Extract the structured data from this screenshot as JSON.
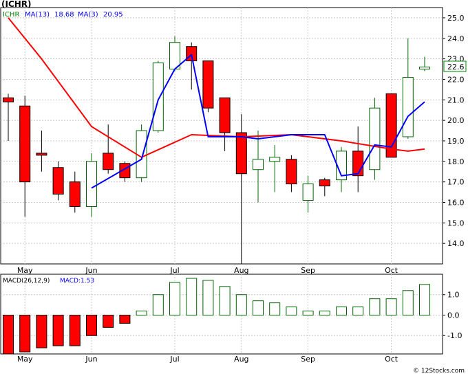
{
  "header": {
    "title": "(ICHR)",
    "legend": [
      {
        "label": "ICHR",
        "color": "#008000"
      },
      {
        "label": "MA(13)",
        "value": "18.68",
        "color": "#0000ff"
      },
      {
        "label": "MA(3)",
        "value": "20.95",
        "color": "#0000ff"
      }
    ]
  },
  "macd_header": {
    "label": "MACD(26,12,9)",
    "value_label": "MACD:1.53",
    "label_color": "#000000",
    "value_color": "#0000ff"
  },
  "watermark": "© 12Stocks.com",
  "colors": {
    "up": "#ffffff",
    "up_border": "#006400",
    "down": "#ff0000",
    "down_border": "#000000",
    "ma_long": "#ff0000",
    "ma_short": "#0000ff",
    "macd_pos_border": "#006400",
    "macd_neg": "#ff0000",
    "price_badge_bg": "#ffffff",
    "price_badge_border": "#008000"
  },
  "chart_data": [
    {
      "type": "candlestick",
      "ticker": "ICHR",
      "ylim": [
        13.0,
        25.5
      ],
      "yticks": [
        "25.0",
        "24.0",
        "23.0",
        "22.0",
        "21.0",
        "20.0",
        "19.0",
        "18.0",
        "17.0",
        "16.0",
        "15.0",
        "14.0"
      ],
      "x_labels": [
        {
          "label": "May",
          "index": 1
        },
        {
          "label": "Jun",
          "index": 5
        },
        {
          "label": "Jul",
          "index": 10
        },
        {
          "label": "Aug",
          "index": 14
        },
        {
          "label": "Sep",
          "index": 18
        },
        {
          "label": "Oct",
          "index": 23
        }
      ],
      "last_price": "22.6",
      "candles": [
        {
          "open": 21.1,
          "high": 21.3,
          "low": 19.0,
          "close": 20.9
        },
        {
          "open": 20.7,
          "high": 21.2,
          "low": 15.3,
          "close": 17.0
        },
        {
          "open": 18.4,
          "high": 19.5,
          "low": 17.5,
          "close": 18.3
        },
        {
          "open": 17.7,
          "high": 18.0,
          "low": 16.1,
          "close": 16.4
        },
        {
          "open": 17.0,
          "high": 17.5,
          "low": 15.5,
          "close": 15.8
        },
        {
          "open": 15.8,
          "high": 18.4,
          "low": 15.3,
          "close": 18.0
        },
        {
          "open": 18.4,
          "high": 19.8,
          "low": 17.4,
          "close": 17.6
        },
        {
          "open": 17.9,
          "high": 18.0,
          "low": 17.0,
          "close": 17.2
        },
        {
          "open": 17.2,
          "high": 19.8,
          "low": 17.0,
          "close": 19.5
        },
        {
          "open": 19.5,
          "high": 22.9,
          "low": 19.4,
          "close": 22.8
        },
        {
          "open": 22.5,
          "high": 24.1,
          "low": 22.4,
          "close": 23.8
        },
        {
          "open": 23.6,
          "high": 23.8,
          "low": 21.5,
          "close": 22.9
        },
        {
          "open": 22.9,
          "high": 22.9,
          "low": 20.4,
          "close": 20.6
        },
        {
          "open": 21.1,
          "high": 21.1,
          "low": 18.5,
          "close": 19.4
        },
        {
          "open": 19.4,
          "high": 20.3,
          "low": 13.0,
          "close": 17.4
        },
        {
          "open": 17.6,
          "high": 19.5,
          "low": 16.0,
          "close": 18.1
        },
        {
          "open": 18.0,
          "high": 18.8,
          "low": 16.5,
          "close": 18.2
        },
        {
          "open": 18.1,
          "high": 18.3,
          "low": 16.5,
          "close": 16.9
        },
        {
          "open": 16.1,
          "high": 17.3,
          "low": 15.5,
          "close": 16.9
        },
        {
          "open": 17.1,
          "high": 17.2,
          "low": 16.3,
          "close": 16.8
        },
        {
          "open": 17.1,
          "high": 18.7,
          "low": 16.5,
          "close": 18.5
        },
        {
          "open": 18.5,
          "high": 19.7,
          "low": 16.5,
          "close": 17.3
        },
        {
          "open": 17.6,
          "high": 21.1,
          "low": 17.1,
          "close": 20.6
        },
        {
          "open": 21.3,
          "high": 21.3,
          "low": 18.2,
          "close": 18.2
        },
        {
          "open": 19.2,
          "high": 24.0,
          "low": 19.1,
          "close": 22.1
        },
        {
          "open": 22.5,
          "high": 23.1,
          "low": 22.4,
          "close": 22.6
        }
      ],
      "series": [
        {
          "type": "line",
          "color": "#ff0000",
          "x": [
            0,
            2,
            5,
            8,
            11,
            14,
            17,
            20,
            23,
            24,
            25
          ],
          "values": [
            25.0,
            23.0,
            19.7,
            18.2,
            19.3,
            19.2,
            19.3,
            19.0,
            18.6,
            18.5,
            18.6
          ]
        },
        {
          "type": "line",
          "color": "#0000ff",
          "x": [
            5,
            8,
            9,
            10,
            11,
            12,
            13,
            14,
            15,
            17,
            19,
            20,
            21,
            22,
            23,
            24,
            25
          ],
          "values": [
            16.7,
            18.1,
            21.0,
            22.5,
            23.2,
            19.2,
            19.2,
            19.2,
            19.1,
            19.3,
            19.3,
            17.3,
            17.4,
            18.8,
            18.7,
            20.2,
            20.9
          ]
        }
      ]
    },
    {
      "type": "bar",
      "title": "MACD(26,12,9)",
      "ylim": [
        -1.9,
        2.0
      ],
      "yticks": [
        "1.0",
        "0.0",
        "-1.0"
      ],
      "values": [
        -1.9,
        -1.8,
        -1.6,
        -1.5,
        -1.5,
        -1.0,
        -0.6,
        -0.4,
        0.2,
        1.0,
        1.6,
        1.8,
        1.7,
        1.4,
        1.0,
        0.7,
        0.6,
        0.4,
        0.2,
        0.2,
        0.4,
        0.4,
        0.8,
        0.8,
        1.2,
        1.5
      ],
      "x_labels": [
        {
          "label": "May",
          "index": 1
        },
        {
          "label": "Jun",
          "index": 5
        },
        {
          "label": "Jul",
          "index": 10
        },
        {
          "label": "Aug",
          "index": 14
        },
        {
          "label": "Sep",
          "index": 18
        },
        {
          "label": "Oct",
          "index": 23
        }
      ]
    }
  ]
}
